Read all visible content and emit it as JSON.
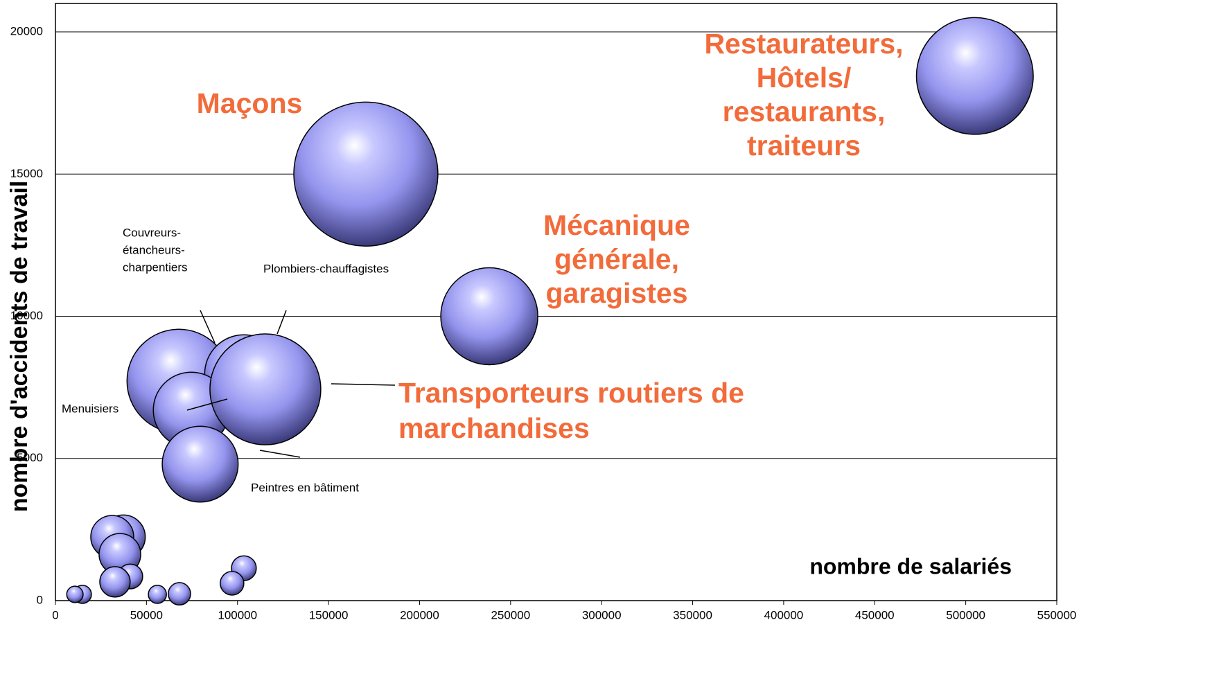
{
  "chart_data": {
    "type": "bubble",
    "y_label": "nombre d'accidents de travail",
    "x_label": "nombre de salariés",
    "xlim": [
      0,
      550000
    ],
    "xticks": [
      0,
      50000,
      100000,
      150000,
      200000,
      250000,
      300000,
      350000,
      400000,
      450000,
      500000,
      550000
    ],
    "ylim": [
      0,
      21000
    ],
    "yticks": [
      0,
      5000,
      10000,
      15000,
      20000
    ],
    "grid": true,
    "color": "#9999ff",
    "x": [
      170500,
      505000,
      67800,
      103500,
      74600,
      115300,
      238300,
      79500,
      37300,
      31200,
      35400,
      41100,
      32700,
      103500,
      97000,
      68100,
      56000,
      14800,
      10700
    ],
    "values": [
      15000,
      18450,
      7720,
      7970,
      6700,
      7430,
      10000,
      4800,
      2240,
      2240,
      1630,
      850,
      660,
      1140,
      610,
      240,
      220,
      220,
      220
    ],
    "sizes": [
      108,
      71,
      56,
      32,
      30,
      64,
      49,
      30,
      10,
      9.6,
      9,
      3.2,
      4.8,
      3.2,
      2.9,
      2.6,
      1.7,
      1.7,
      1.4
    ],
    "annotations": [
      {
        "lines": [
          "Maçons"
        ]
      },
      {
        "lines": [
          "Restaurateurs,",
          "Hôtels/",
          "restaurants,",
          "traiteurs"
        ]
      },
      {
        "lines": [
          "Mécanique",
          "générale,",
          "garagistes"
        ]
      },
      {
        "lines": [
          "Transporteurs routiers de",
          "marchandises"
        ]
      },
      {
        "lines": [
          "Couvreurs-",
          "étancheurs-",
          "charpentiers"
        ]
      },
      {
        "lines": [
          "Plombiers-chauffagistes"
        ]
      },
      {
        "lines": [
          "Menuisiers"
        ]
      },
      {
        "lines": [
          "Peintres en bâtiment"
        ]
      }
    ]
  }
}
